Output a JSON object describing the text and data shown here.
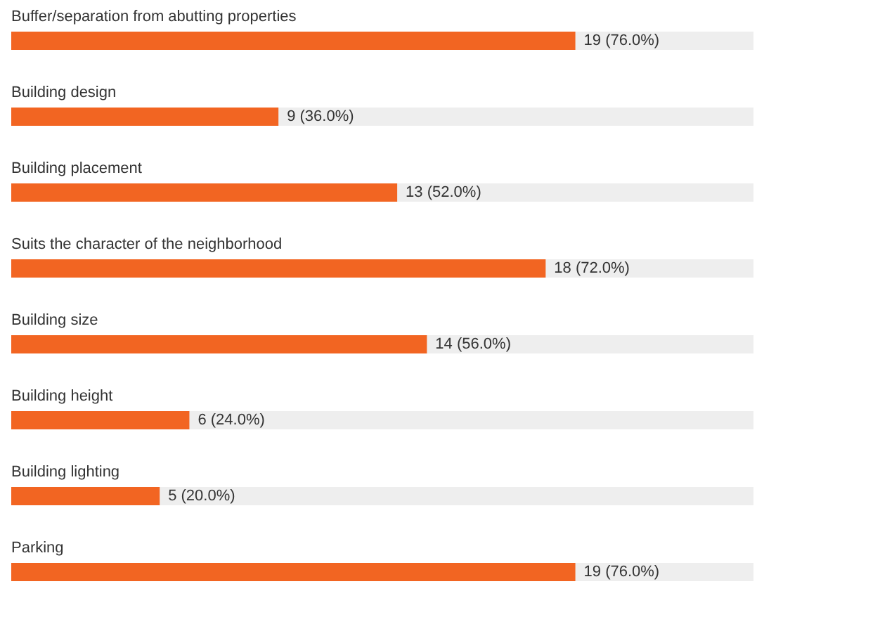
{
  "chart_data": {
    "type": "bar",
    "orientation": "horizontal",
    "categories": [
      "Buffer/separation from abutting properties",
      "Building design",
      "Building placement",
      "Suits the character of the neighborhood",
      "Building size",
      "Building height",
      "Building lighting",
      "Parking"
    ],
    "values": [
      19,
      9,
      13,
      18,
      14,
      6,
      5,
      19
    ],
    "value_labels": [
      "19 (76.0%)",
      "9 (36.0%)",
      "13 (52.0%)",
      "18 (72.0%)",
      "14 (56.0%)",
      "6 (24.0%)",
      "5 (20.0%)",
      "19 (76.0%)"
    ],
    "color": "#f26522",
    "xlim": [
      0,
      25
    ],
    "tick_labels": "y"
  }
}
